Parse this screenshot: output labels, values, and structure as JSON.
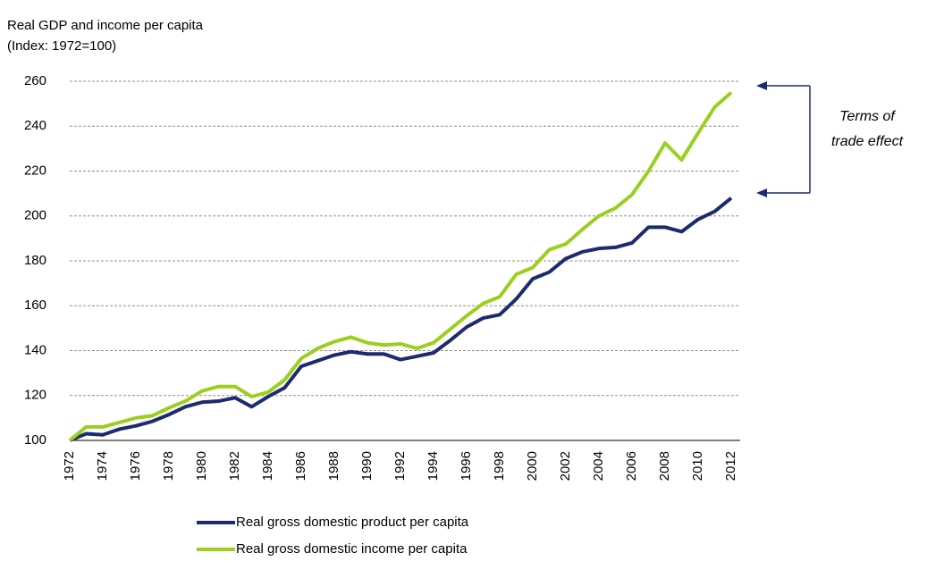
{
  "chart_data": {
    "type": "line",
    "title": "Real GDP and income per capita",
    "subtitle": "(Index: 1972=100)",
    "annotation": [
      "Terms of",
      "trade effect"
    ],
    "x": [
      1972,
      1973,
      1974,
      1975,
      1976,
      1977,
      1978,
      1979,
      1980,
      1981,
      1982,
      1983,
      1984,
      1985,
      1986,
      1987,
      1988,
      1989,
      1990,
      1991,
      1992,
      1993,
      1994,
      1995,
      1996,
      1997,
      1998,
      1999,
      2000,
      2001,
      2002,
      2003,
      2004,
      2005,
      2006,
      2007,
      2008,
      2009,
      2010,
      2011,
      2012
    ],
    "xlim": [
      1972,
      2012
    ],
    "xticks": [
      1972,
      1974,
      1976,
      1978,
      1980,
      1982,
      1984,
      1986,
      1988,
      1990,
      1992,
      1994,
      1996,
      1998,
      2000,
      2002,
      2004,
      2006,
      2008,
      2010,
      2012
    ],
    "ylim": [
      100,
      260
    ],
    "yticks": [
      100,
      120,
      140,
      160,
      180,
      200,
      220,
      240,
      260
    ],
    "grid": true,
    "series": [
      {
        "name": "Real gross domestic product per capita",
        "color": "#1c2b6e",
        "values": [
          100,
          103,
          102.5,
          105,
          106.5,
          108.5,
          111.5,
          115,
          117,
          117.5,
          119,
          115,
          119.5,
          123.5,
          133,
          135.5,
          138,
          139.5,
          138.5,
          138.5,
          136,
          137.5,
          139,
          144.5,
          150.5,
          154.5,
          156,
          163,
          172,
          175,
          181,
          184,
          185.5,
          186,
          188,
          195,
          195,
          193,
          198.5,
          202,
          208
        ]
      },
      {
        "name": "Real gross domestic income per capita",
        "color": "#9bcf1f",
        "values": [
          100,
          106,
          106,
          108,
          110,
          111,
          114.5,
          117.5,
          122,
          124,
          124,
          119.5,
          121.5,
          127,
          136.5,
          141,
          144,
          146,
          143.5,
          142.5,
          143,
          141,
          143.5,
          149.5,
          155.5,
          161,
          164,
          174,
          177,
          185,
          187.5,
          194,
          200,
          203.5,
          209.5,
          220,
          232.5,
          225,
          237,
          248.5,
          255
        ]
      }
    ]
  }
}
